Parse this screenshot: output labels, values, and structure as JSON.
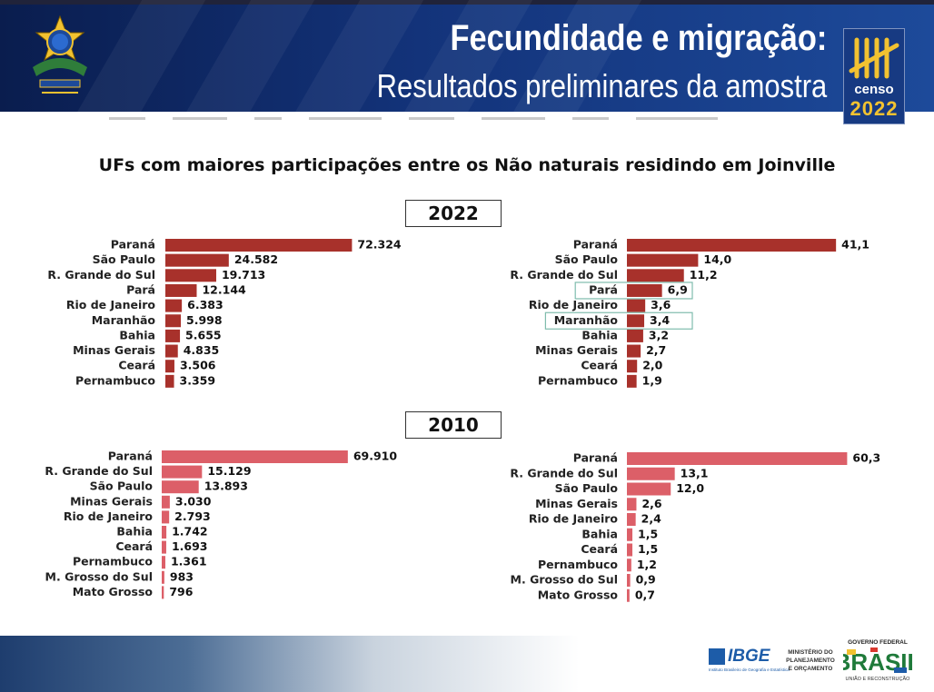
{
  "header": {
    "title": "Fecundidade e migração:",
    "subtitle": "Resultados preliminares da amostra",
    "logo_line1": "censo",
    "logo_line2": "2022",
    "coat_of_arms_icon": "brazil-coat-of-arms-icon"
  },
  "colors": {
    "header_bg": "#13337a",
    "bar_2022": "#a8312b",
    "bar_2010": "#dc5f68",
    "highlight_box": "#7fbcad"
  },
  "chart_data": [
    {
      "type": "bar",
      "orientation": "horizontal",
      "title": "UFs com maiores participações entre os Não naturais residindo em Joinville",
      "year": "2022",
      "categories": [
        "Paraná",
        "São Paulo",
        "R. Grande do Sul",
        "Pará",
        "Rio de Janeiro",
        "Maranhão",
        "Bahia",
        "Minas Gerais",
        "Ceará",
        "Pernambuco"
      ],
      "values": [
        72324,
        24582,
        19713,
        12144,
        6383,
        5998,
        5655,
        4835,
        3506,
        3359
      ],
      "labels": [
        "72.324",
        "24.582",
        "19.713",
        "12.144",
        "6.383",
        "5.998",
        "5.655",
        "4.835",
        "3.506",
        "3.359"
      ],
      "xlim": [
        0,
        100000
      ],
      "grid": false,
      "legend": "none"
    },
    {
      "type": "bar",
      "orientation": "horizontal",
      "year": "2022",
      "categories": [
        "Paraná",
        "São Paulo",
        "R. Grande do Sul",
        "Pará",
        "Rio de Janeiro",
        "Maranhão",
        "Bahia",
        "Minas Gerais",
        "Ceará",
        "Pernambuco"
      ],
      "values": [
        41.1,
        14.0,
        11.2,
        6.9,
        3.6,
        3.4,
        3.2,
        2.7,
        2.0,
        1.9
      ],
      "labels": [
        "41,1",
        "14,0",
        "11,2",
        "6,9",
        "3,6",
        "3,4",
        "3,2",
        "2,7",
        "2,0",
        "1,9"
      ],
      "highlighted": [
        "Pará",
        "Maranhão"
      ],
      "xlim": [
        0,
        50
      ],
      "grid": false,
      "legend": "none"
    },
    {
      "type": "bar",
      "orientation": "horizontal",
      "year": "2010",
      "categories": [
        "Paraná",
        "R. Grande do Sul",
        "São Paulo",
        "Minas Gerais",
        "Rio de Janeiro",
        "Bahia",
        "Ceará",
        "Pernambuco",
        "M. Grosso do Sul",
        "Mato Grosso"
      ],
      "values": [
        69910,
        15129,
        13893,
        3030,
        2793,
        1742,
        1693,
        1361,
        983,
        796
      ],
      "labels": [
        "69.910",
        "15.129",
        "13.893",
        "3.030",
        "2.793",
        "1.742",
        "1.693",
        "1.361",
        "983",
        "796"
      ],
      "xlim": [
        0,
        100000
      ],
      "grid": false,
      "legend": "none"
    },
    {
      "type": "bar",
      "orientation": "horizontal",
      "year": "2010",
      "categories": [
        "Paraná",
        "R. Grande do Sul",
        "São Paulo",
        "Minas Gerais",
        "Rio de Janeiro",
        "Bahia",
        "Ceará",
        "Pernambuco",
        "M. Grosso do Sul",
        "Mato Grosso"
      ],
      "values": [
        60.3,
        13.1,
        12.0,
        2.6,
        2.4,
        1.5,
        1.5,
        1.2,
        0.9,
        0.7
      ],
      "labels": [
        "60,3",
        "13,1",
        "12,0",
        "2,6",
        "2,4",
        "1,5",
        "1,5",
        "1,2",
        "0,9",
        "0,7"
      ],
      "xlim": [
        0,
        70
      ],
      "grid": false,
      "legend": "none"
    }
  ],
  "footer": {
    "ibge_label": "IBGE",
    "ibge_sub": "Instituto Brasileiro de Geografia e Estatística",
    "ministry_line1": "MINISTÉRIO DO",
    "ministry_line2": "PLANEJAMENTO",
    "ministry_line3": "E ORÇAMENTO",
    "gov_top": "GOVERNO FEDERAL",
    "gov_brand": "BRASIL",
    "gov_bottom": "UNIÃO E RECONSTRUÇÃO"
  }
}
